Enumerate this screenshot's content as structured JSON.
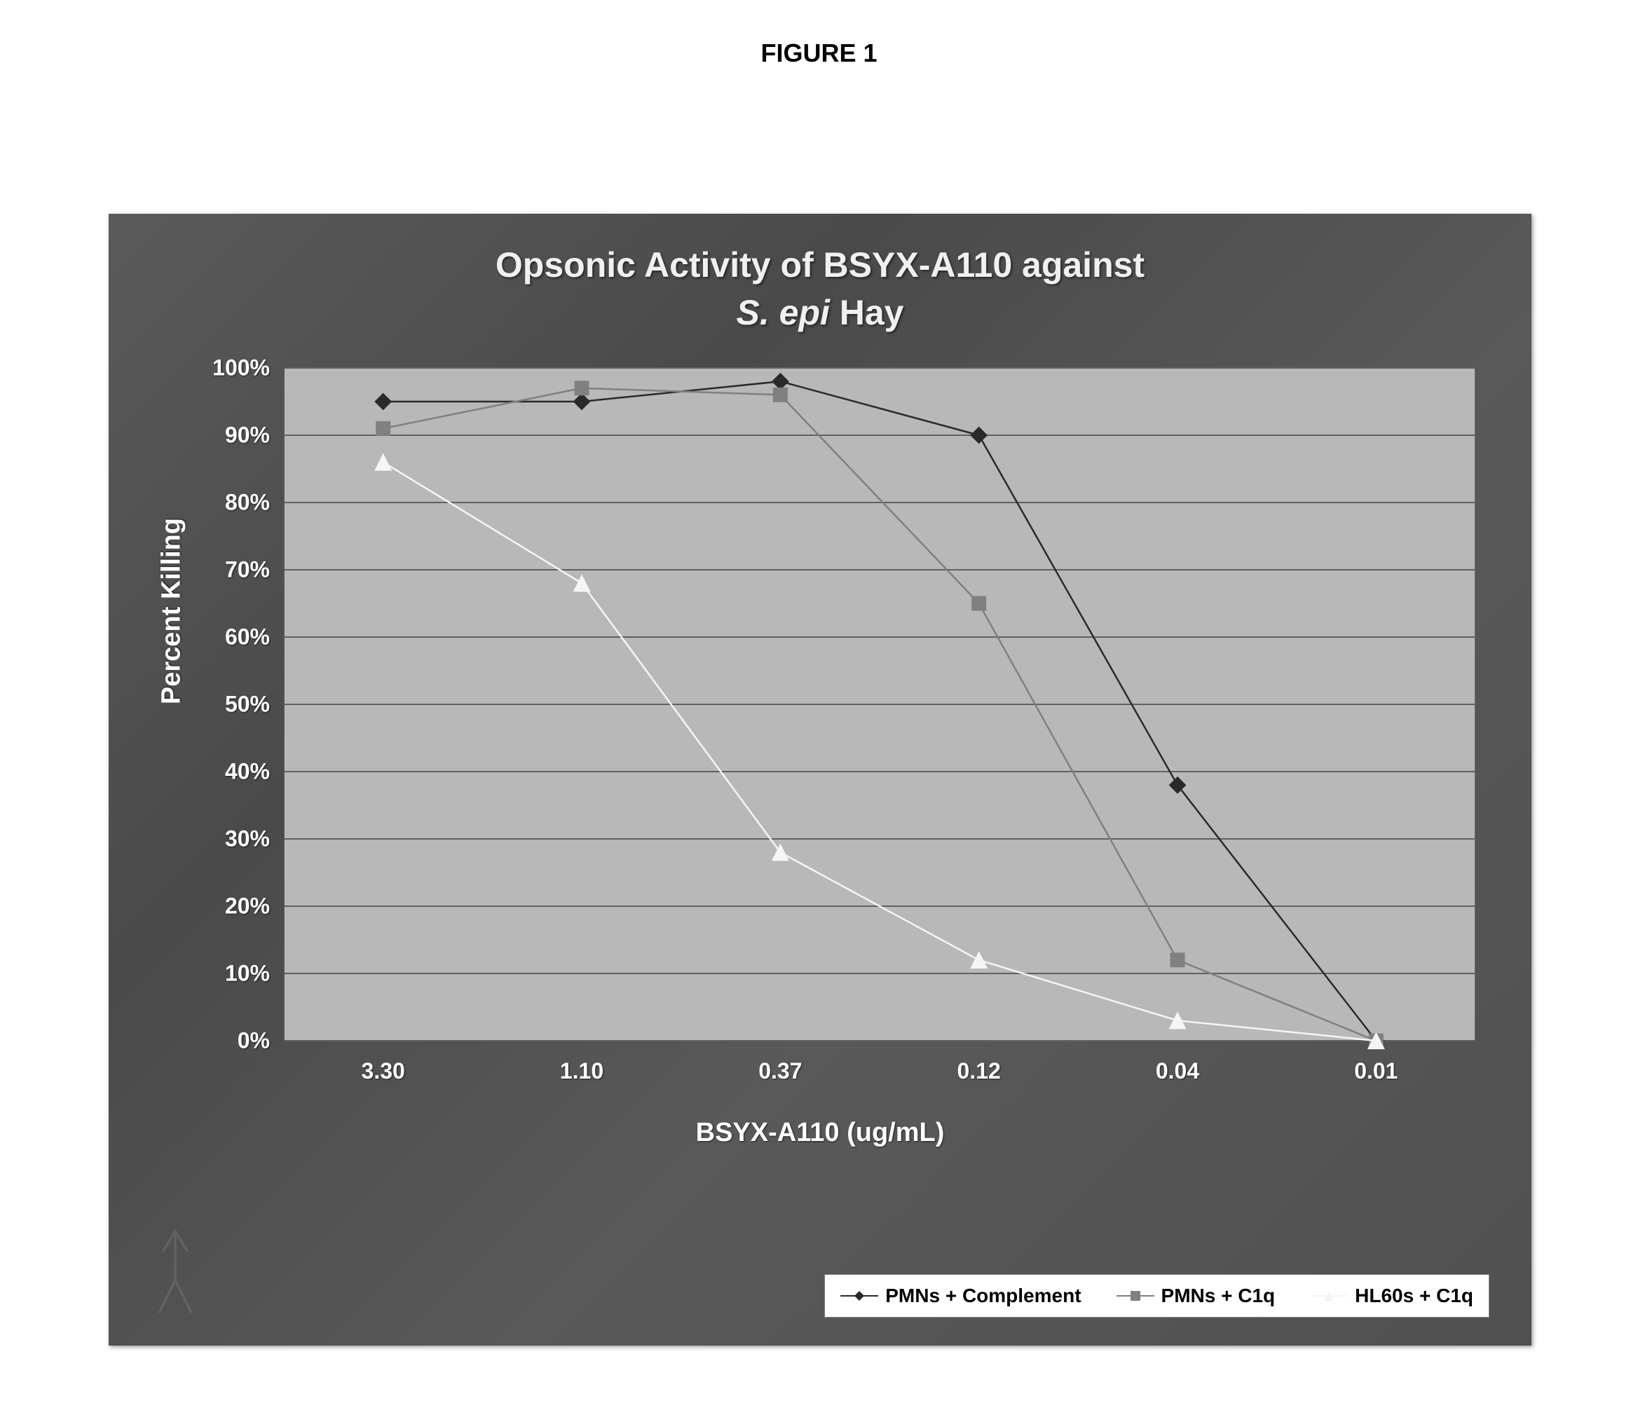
{
  "figure_label": "FIGURE 1",
  "chart": {
    "type": "line",
    "title_line1": "Opsonic Activity of BSYX-A110 against",
    "title_line2_italic": "S. epi",
    "title_line2_rest": "  Hay",
    "background_color": "#555555",
    "plot_background": "#b8b8b8",
    "grid_color": "#606060",
    "y_axis": {
      "title": "Percent Killing",
      "min": 0,
      "max": 100,
      "tick_step": 10,
      "tick_labels": [
        "0%",
        "10%",
        "20%",
        "30%",
        "40%",
        "50%",
        "60%",
        "70%",
        "80%",
        "90%",
        "100%"
      ],
      "label_color": "#ffffff",
      "title_fontsize": 38,
      "label_fontsize": 32
    },
    "x_axis": {
      "title": "BSYX-A110 (ug/mL)",
      "categories": [
        "3.30",
        "1.10",
        "0.37",
        "0.12",
        "0.04",
        "0.01"
      ],
      "label_color": "#ffffff",
      "title_fontsize": 38,
      "label_fontsize": 32
    },
    "series": [
      {
        "name": "PMNs + Complement",
        "color": "#2a2a2a",
        "marker": "diamond",
        "marker_size": 14,
        "line_width": 2.5,
        "values": [
          95,
          95,
          98,
          90,
          38,
          0
        ]
      },
      {
        "name": "PMNs + C1q",
        "color": "#808080",
        "marker": "square",
        "marker_size": 12,
        "line_width": 2.5,
        "values": [
          91,
          97,
          96,
          65,
          12,
          0
        ]
      },
      {
        "name": "HL60s + C1q",
        "color": "#f5f5f5",
        "marker": "triangle",
        "marker_size": 14,
        "line_width": 2.5,
        "values": [
          86,
          68,
          28,
          12,
          3,
          0
        ]
      }
    ],
    "legend": {
      "background": "#ffffff",
      "text_color": "#000000",
      "fontsize": 28
    }
  }
}
